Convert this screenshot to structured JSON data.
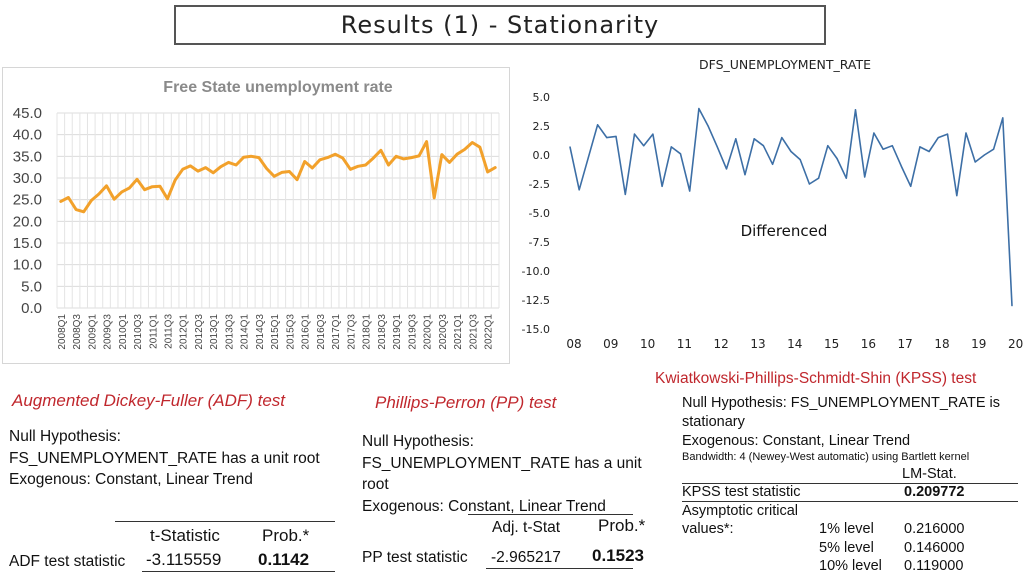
{
  "header": {
    "title": "Results (1) - Stationarity"
  },
  "chart_data": [
    {
      "type": "line",
      "title": "Free State unemployment rate",
      "xlabel": "",
      "ylabel": "",
      "ylim": [
        0,
        45
      ],
      "yticks": [
        "0.0",
        "5.0",
        "10.0",
        "15.0",
        "20.0",
        "25.0",
        "30.0",
        "35.0",
        "40.0",
        "45.0"
      ],
      "xtick_labels": [
        "2008Q1",
        "2008Q3",
        "2009Q1",
        "2009Q3",
        "2010Q1",
        "2010Q3",
        "2011Q1",
        "2011Q3",
        "2012Q1",
        "2012Q3",
        "2013Q1",
        "2013Q3",
        "2014Q1",
        "2014Q3",
        "2015Q1",
        "2015Q3",
        "2016Q1",
        "2016Q3",
        "2017Q1",
        "2017Q3",
        "2018Q1",
        "2018Q3",
        "2019Q1",
        "2019Q3",
        "2020Q1",
        "2020Q3",
        "2021Q1",
        "2021Q3",
        "2022Q1"
      ],
      "grid": true,
      "line_color": "#f2a12b",
      "series": [
        {
          "values": [
            24.6,
            25.5,
            22.7,
            22.2,
            24.8,
            26.3,
            28.2,
            25.1,
            26.8,
            27.7,
            29.7,
            27.3,
            28.0,
            28.1,
            25.2,
            29.5,
            32.0,
            32.8,
            31.6,
            32.4,
            31.2,
            32.6,
            33.6,
            33.0,
            34.8,
            35.0,
            34.7,
            32.2,
            30.4,
            31.3,
            31.5,
            29.6,
            33.8,
            32.3,
            34.2,
            34.7,
            35.5,
            34.6,
            32.0,
            32.7,
            33.0,
            34.6,
            36.4,
            33.0,
            35.0,
            34.4,
            34.7,
            35.1,
            38.4,
            25.4,
            35.4,
            33.6,
            35.5,
            36.6,
            38.2,
            37.1,
            31.4,
            32.4
          ]
        }
      ]
    },
    {
      "type": "line",
      "title": "DFS_UNEMPLOYMENT_RATE",
      "annotation": "Differenced",
      "xlabel": "",
      "ylabel": "",
      "ylim": [
        -15,
        5
      ],
      "yticks": [
        "-15.0",
        "-12.5",
        "-10.0",
        "-7.5",
        "-5.0",
        "-2.5",
        "0.0",
        "2.5",
        "5.0"
      ],
      "xtick_labels": [
        "08",
        "09",
        "10",
        "11",
        "12",
        "13",
        "14",
        "15",
        "16",
        "17",
        "18",
        "19",
        "20"
      ],
      "grid": false,
      "line_color": "#3d6fa6",
      "series": [
        {
          "values": [
            0.7,
            -3.0,
            -0.2,
            2.6,
            1.5,
            1.6,
            -3.4,
            1.8,
            0.8,
            1.8,
            -2.7,
            0.7,
            0.1,
            -3.1,
            4.0,
            2.5,
            0.7,
            -1.2,
            1.4,
            -1.7,
            1.4,
            0.8,
            -0.8,
            1.5,
            0.3,
            -0.4,
            -2.5,
            -2.0,
            0.8,
            -0.3,
            -2.0,
            3.9,
            -1.9,
            1.9,
            0.5,
            0.8,
            -1.0,
            -2.7,
            0.7,
            0.3,
            1.5,
            1.8,
            -3.5,
            1.9,
            -0.6,
            0.0,
            0.5,
            3.2,
            -13.0
          ]
        }
      ]
    }
  ],
  "adf": {
    "title": "Augmented Dickey-Fuller (ADF) test",
    "null_label": "Null Hypothesis:",
    "null_text": "FS_UNEMPLOYMENT_RATE has a unit root",
    "exog": "Exogenous: Constant, Linear Trend",
    "col_tstat": "t-Statistic",
    "col_prob": "Prob.*",
    "row_label": "ADF test statistic",
    "tstat": "-3.115559",
    "prob": "0.1142"
  },
  "pp": {
    "title": "Phillips-Perron (PP) test",
    "null_label": "Null Hypothesis:",
    "null_text": "FS_UNEMPLOYMENT_RATE has a unit root",
    "exog": "Exogenous: Constant, Linear Trend",
    "col_tstat": "Adj. t-Stat",
    "col_prob": "Prob.*",
    "row_label": "PP test statistic",
    "tstat": "-2.965217",
    "prob": "0.1523"
  },
  "kpss": {
    "title": "Kwiatkowski-Phillips-Schmidt-Shin (KPSS) test",
    "null_text": "Null Hypothesis: FS_UNEMPLOYMENT_RATE is stationary",
    "exog": "Exogenous: Constant, Linear Trend",
    "bandwidth": "Bandwidth: 4 (Newey-West automatic) using Bartlett kernel",
    "col_lm": "LM-Stat.",
    "row_label": "KPSS test statistic",
    "lm_value": "0.209772",
    "crit_label_1": "Asymptotic critical",
    "crit_label_2": "values*:",
    "crit": [
      {
        "level": "1% level",
        "value": "0.216000"
      },
      {
        "level": "5% level",
        "value": "0.146000"
      },
      {
        "level": "10% level",
        "value": "0.119000"
      }
    ]
  }
}
